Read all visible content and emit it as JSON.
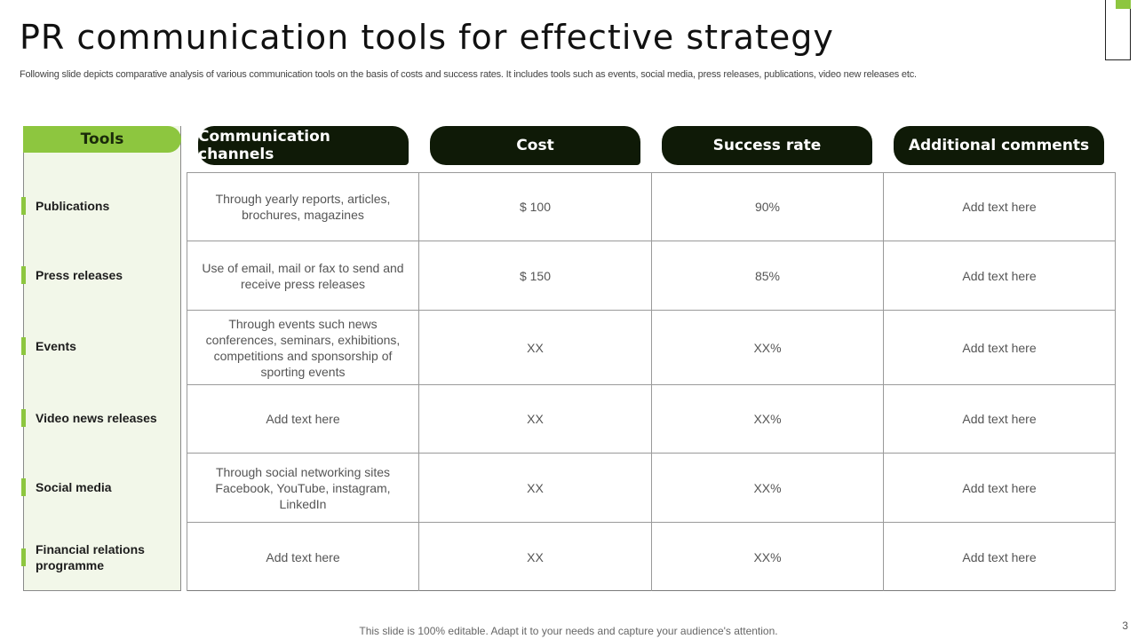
{
  "title": "PR communication tools for effective strategy",
  "subtitle": "Following slide depicts comparative analysis of various communication tools on the basis of costs and success rates. It includes tools such as events, social media, press releases, publications, video new releases etc.",
  "tools_header": "Tools",
  "columns": [
    "Communication channels",
    "Cost",
    "Success rate",
    "Additional comments"
  ],
  "rows": [
    {
      "tool": "Publications",
      "channel": "Through yearly reports, articles, brochures, magazines",
      "cost": "$ 100",
      "success": "90%",
      "comment": "Add text here"
    },
    {
      "tool": "Press releases",
      "channel": "Use of email, mail or fax to send and receive press releases",
      "cost": "$ 150",
      "success": "85%",
      "comment": "Add text here"
    },
    {
      "tool": "Events",
      "channel": "Through events such news conferences, seminars, exhibitions, competitions and sponsorship of sporting events",
      "cost": "XX",
      "success": "XX%",
      "comment": "Add text here"
    },
    {
      "tool": "Video news releases",
      "channel": "Add text here",
      "cost": "XX",
      "success": "XX%",
      "comment": "Add text here"
    },
    {
      "tool": "Social media",
      "channel": "Through social networking sites Facebook, YouTube, instagram, LinkedIn",
      "cost": "XX",
      "success": "XX%",
      "comment": "Add text here"
    },
    {
      "tool": "Financial relations programme",
      "channel": "Add text here",
      "cost": "XX",
      "success": "XX%",
      "comment": "Add text here"
    }
  ],
  "footer": "This slide is 100% editable. Adapt it to your needs and capture your audience's attention.",
  "page_number": "3",
  "colors": {
    "accent": "#8dc63f",
    "header_bg": "#0f1a07",
    "panel_bg": "#f2f7e9"
  }
}
